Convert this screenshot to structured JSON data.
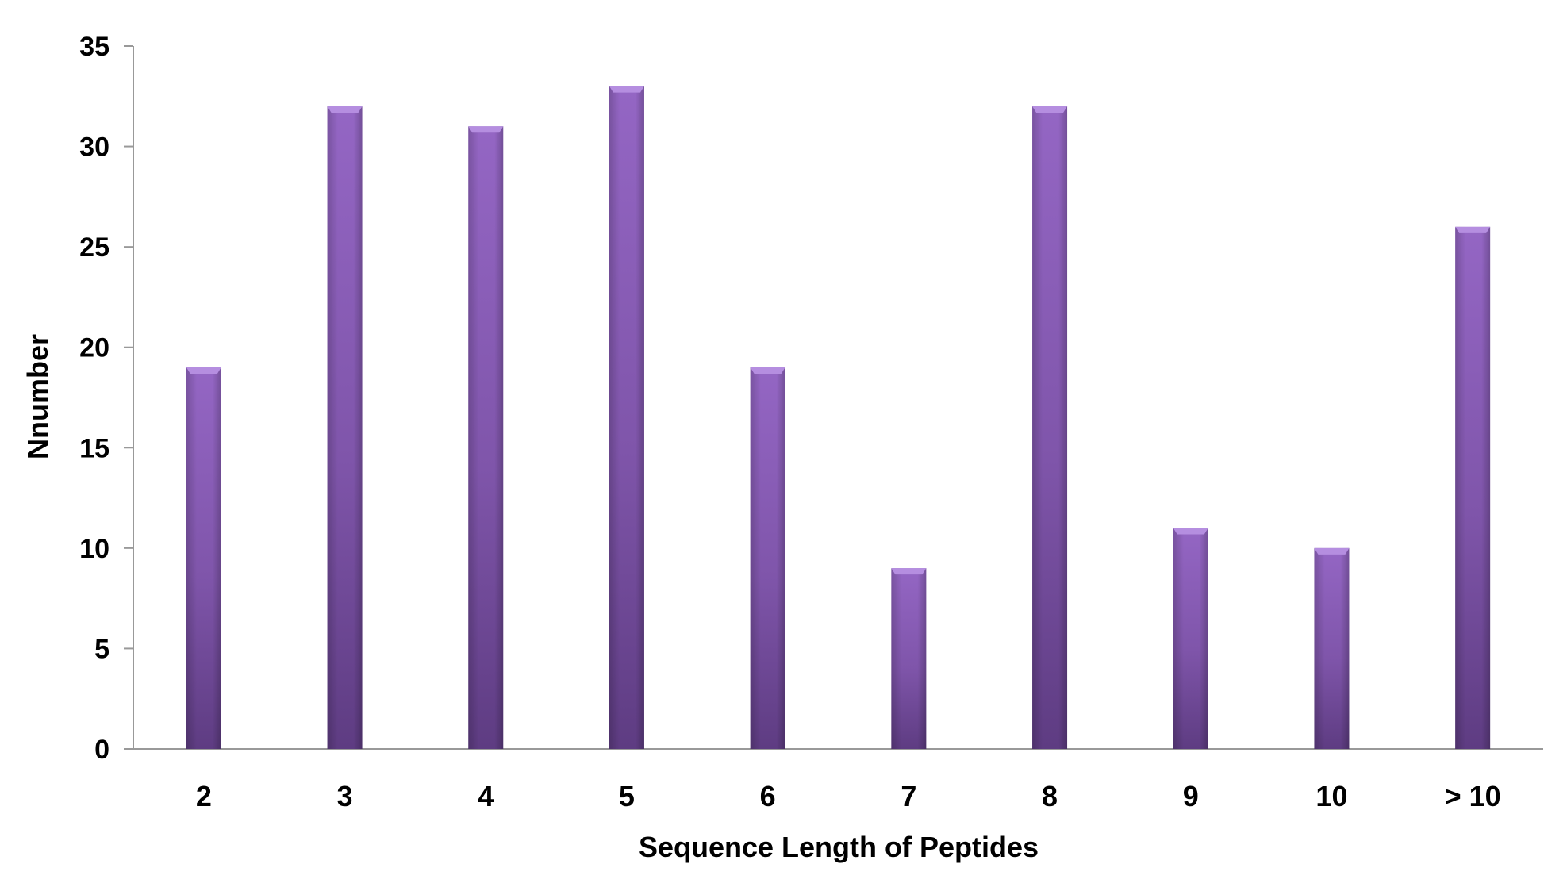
{
  "chart_data": {
    "type": "bar",
    "title": "",
    "xlabel": "Sequence Length of Peptides",
    "ylabel": "Nnumber",
    "categories": [
      "2",
      "3",
      "4",
      "5",
      "6",
      "7",
      "8",
      "9",
      "10",
      "> 10"
    ],
    "values": [
      19,
      32,
      31,
      33,
      19,
      9,
      32,
      11,
      10,
      26
    ],
    "ylim": [
      0,
      35
    ],
    "yticks": [
      "0",
      "5",
      "10",
      "15",
      "20",
      "25",
      "30",
      "35"
    ],
    "grid": false,
    "legend": "none",
    "colors": {
      "bar_light": "#9466c4",
      "bar_mid": "#7f55aa",
      "bar_dark": "#5e3c82",
      "bar_top": "#b58ee0",
      "axis": "#999999"
    }
  }
}
